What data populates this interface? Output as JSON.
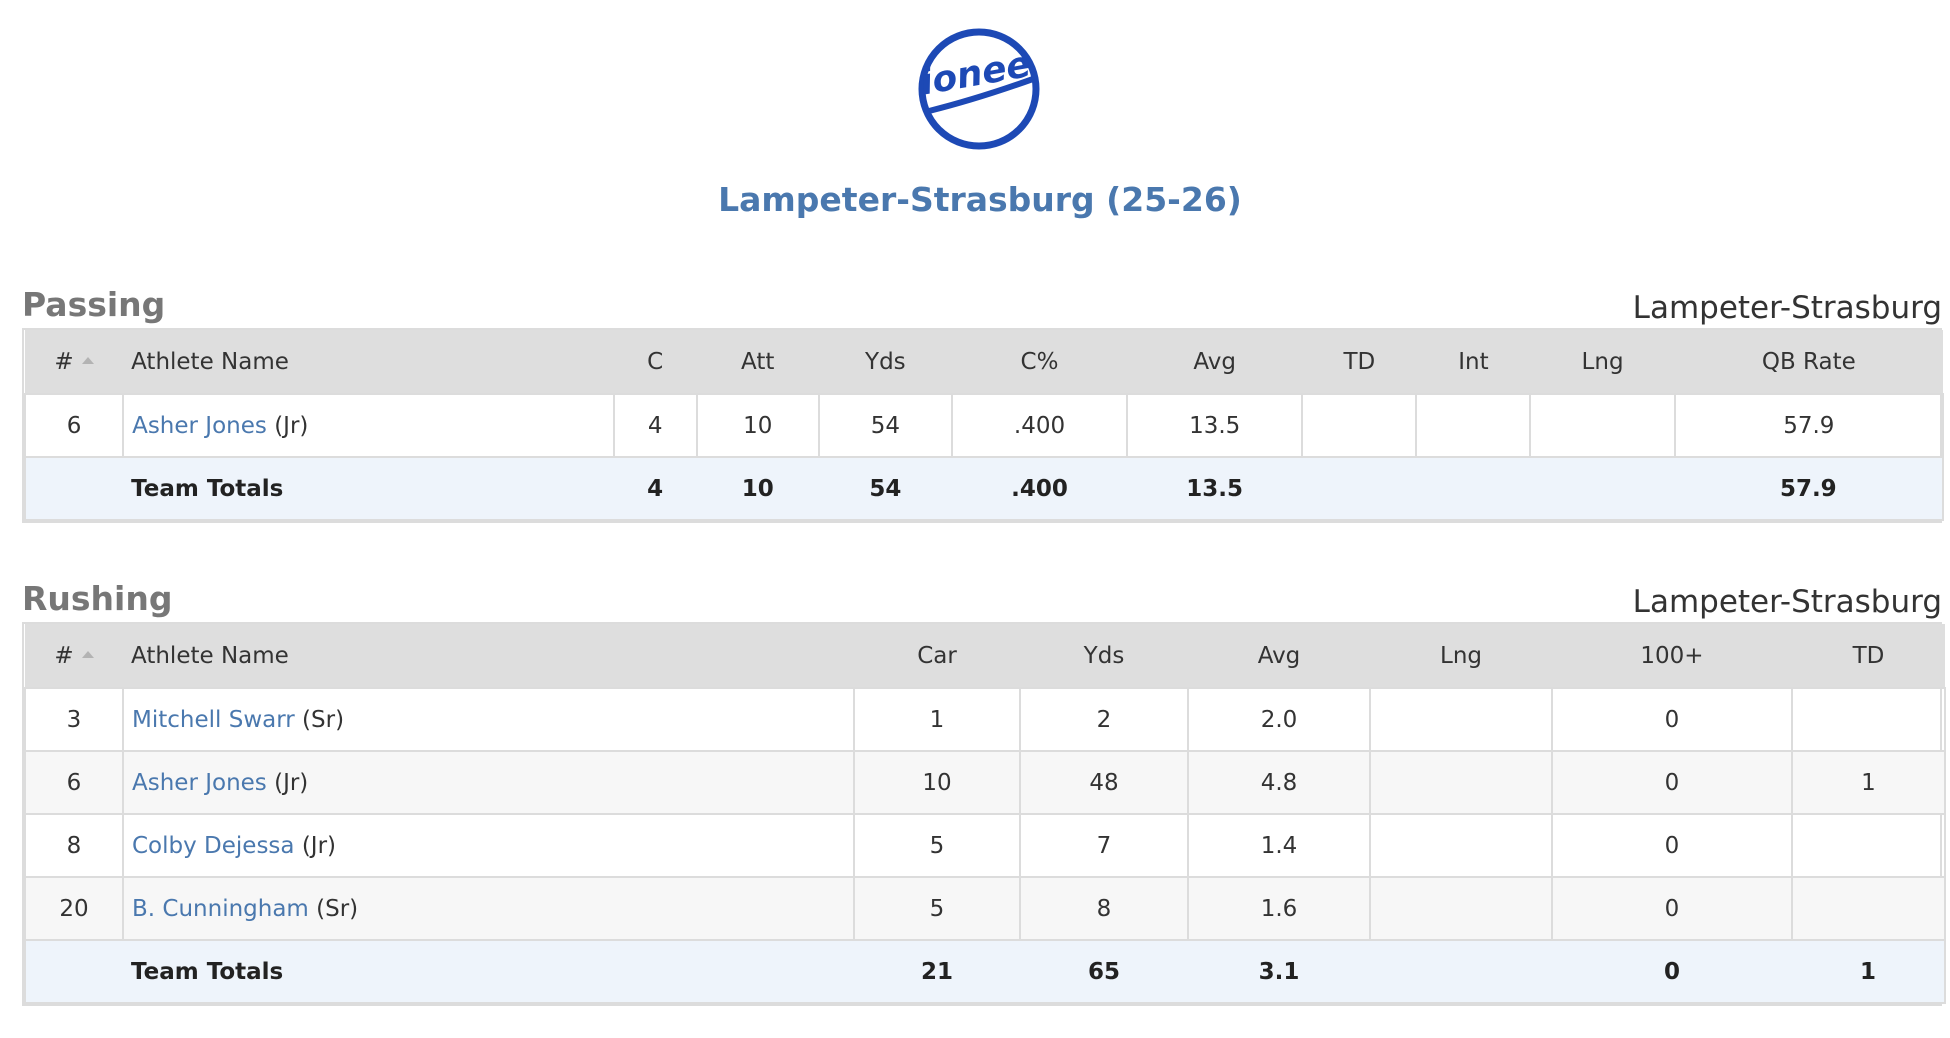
{
  "logo": {
    "text": "ionee",
    "color": "#1d49b5"
  },
  "team_title": "Lampeter-Strasburg (25-26)",
  "passing": {
    "title": "Passing",
    "team": "Lampeter-Strasburg",
    "columns": [
      "#",
      "Athlete Name",
      "C",
      "Att",
      "Yds",
      "C%",
      "Avg",
      "TD",
      "Int",
      "Lng",
      "QB Rate"
    ],
    "rows": [
      {
        "num": "6",
        "name": "Asher Jones",
        "class": "(Jr)",
        "c": "4",
        "att": "10",
        "yds": "54",
        "pct": ".400",
        "avg": "13.5",
        "td": "",
        "int": "",
        "lng": "",
        "qbrate": "57.9"
      }
    ],
    "totals": {
      "label": "Team Totals",
      "c": "4",
      "att": "10",
      "yds": "54",
      "pct": ".400",
      "avg": "13.5",
      "td": "",
      "int": "",
      "lng": "",
      "qbrate": "57.9"
    }
  },
  "rushing": {
    "title": "Rushing",
    "team": "Lampeter-Strasburg",
    "columns": [
      "#",
      "Athlete Name",
      "Car",
      "Yds",
      "Avg",
      "Lng",
      "100+",
      "TD"
    ],
    "rows": [
      {
        "num": "3",
        "name": "Mitchell Swarr",
        "class": "(Sr)",
        "car": "1",
        "yds": "2",
        "avg": "2.0",
        "lng": "",
        "h100": "0",
        "td": ""
      },
      {
        "num": "6",
        "name": "Asher Jones",
        "class": "(Jr)",
        "car": "10",
        "yds": "48",
        "avg": "4.8",
        "lng": "",
        "h100": "0",
        "td": "1"
      },
      {
        "num": "8",
        "name": "Colby Dejessa",
        "class": "(Jr)",
        "car": "5",
        "yds": "7",
        "avg": "1.4",
        "lng": "",
        "h100": "0",
        "td": ""
      },
      {
        "num": "20",
        "name": "B. Cunningham",
        "class": "(Sr)",
        "car": "5",
        "yds": "8",
        "avg": "1.6",
        "lng": "",
        "h100": "0",
        "td": ""
      }
    ],
    "totals": {
      "label": "Team Totals",
      "car": "21",
      "yds": "65",
      "avg": "3.1",
      "lng": "",
      "h100": "0",
      "td": "1"
    }
  }
}
